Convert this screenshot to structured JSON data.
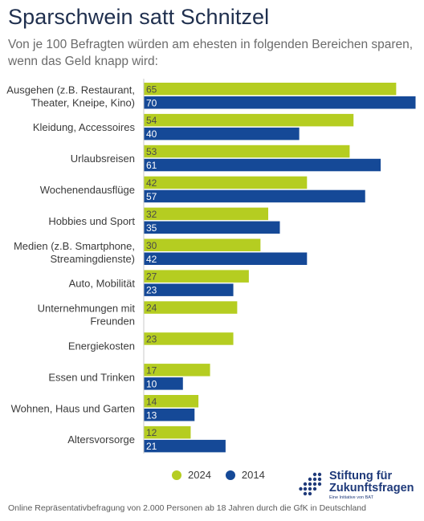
{
  "header": {
    "title": "Sparschwein satt Schnitzel",
    "subtitle": "Von je 100 Befragten würden am ehesten in folgenden Bereichen sparen, wenn das Geld knapp wird:"
  },
  "colors": {
    "2024": "#b5cd21",
    "2014": "#154997",
    "axis": "#c8c8c8",
    "label_on_light": "#4a4a4a",
    "label_on_dark": "#ffffff"
  },
  "chart_data": {
    "type": "bar",
    "orientation": "horizontal",
    "xlim": [
      0,
      70
    ],
    "categories": [
      [
        "Ausgehen (z.B. Restaurant,",
        "Theater, Kneipe, Kino)"
      ],
      [
        "Kleidung, Accessoires"
      ],
      [
        "Urlaubsreisen"
      ],
      [
        "Wochenendausflüge"
      ],
      [
        "Hobbies und Sport"
      ],
      [
        "Medien (z.B. Smartphone,",
        "Streamingdienste)"
      ],
      [
        "Auto, Mobilität"
      ],
      [
        "Unternehmungen mit",
        "Freunden"
      ],
      [
        "Energiekosten"
      ],
      [
        "Essen und Trinken"
      ],
      [
        "Wohnen, Haus und Garten"
      ],
      [
        "Altersvorsorge"
      ]
    ],
    "series": [
      {
        "name": "2024",
        "values": [
          65,
          54,
          53,
          42,
          32,
          30,
          27,
          24,
          23,
          17,
          14,
          12
        ]
      },
      {
        "name": "2014",
        "values": [
          70,
          40,
          61,
          57,
          35,
          42,
          23,
          null,
          null,
          10,
          13,
          21
        ]
      }
    ],
    "legend": "bottom"
  },
  "footer": {
    "note": "Online Repräsentativbefragung von 2.000 Personen ab 18 Jahren durch die GfK in Deutschland"
  },
  "logo": {
    "line1": "Stiftung für",
    "line2": "Zukunftsfragen",
    "tagline": "Eine Initiative von BAT"
  }
}
